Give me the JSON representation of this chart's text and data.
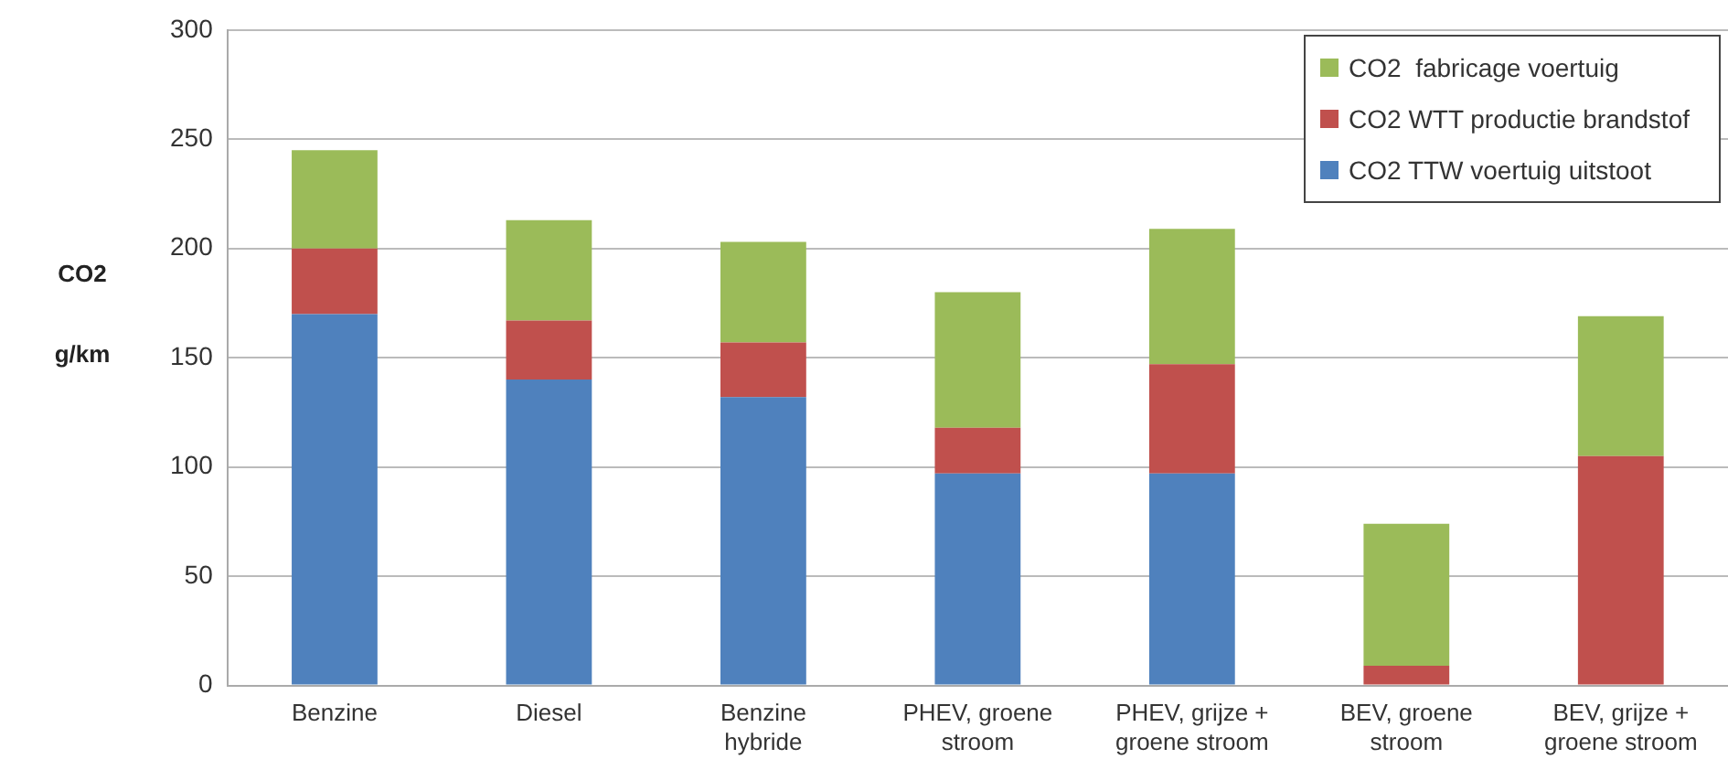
{
  "chart_data": {
    "type": "bar",
    "stacked": true,
    "ylabel": "CO2 g/km",
    "categories": [
      "Benzine",
      "Diesel",
      "Benzine hybride",
      "PHEV, groene stroom",
      "PHEV, grijze + groene stroom",
      "BEV, groene stroom",
      "BEV, grijze + groene stroom"
    ],
    "series": [
      {
        "name": "CO2 TTW voertuig uitstoot",
        "color": "#4f81bd",
        "values": [
          170,
          140,
          132,
          97,
          97,
          0,
          0
        ]
      },
      {
        "name": "CO2 WTT productie brandstof",
        "color": "#c0504d",
        "values": [
          30,
          27,
          25,
          21,
          50,
          9,
          105
        ]
      },
      {
        "name": "CO2  fabricage voertuig",
        "color": "#9bbb59",
        "values": [
          45,
          46,
          46,
          62,
          62,
          65,
          64
        ]
      }
    ],
    "ylim": [
      0,
      300
    ],
    "yticks": [
      0,
      50,
      100,
      150,
      200,
      250,
      300
    ],
    "grid": "y",
    "legend": "top right"
  }
}
